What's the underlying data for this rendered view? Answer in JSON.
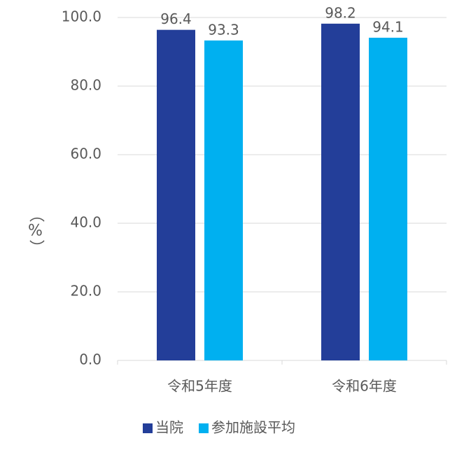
{
  "chart_data": {
    "type": "bar",
    "ylabel": "（%）",
    "categories": [
      "令和5年度",
      "令和6年度"
    ],
    "series": [
      {
        "name": "当院",
        "color": "#233e99",
        "values": [
          96.4,
          98.2
        ]
      },
      {
        "name": "参加施設平均",
        "color": "#00b0f0",
        "values": [
          93.3,
          94.1
        ]
      }
    ],
    "ylim": [
      0,
      100
    ],
    "yticks": [
      {
        "value": 0,
        "label": "0.0"
      },
      {
        "value": 20,
        "label": "20.0"
      },
      {
        "value": 40,
        "label": "40.0"
      },
      {
        "value": 60,
        "label": "60.0"
      },
      {
        "value": 80,
        "label": "80.0"
      },
      {
        "value": 100,
        "label": "100.0"
      }
    ],
    "grid": true,
    "legend": "bottom"
  }
}
